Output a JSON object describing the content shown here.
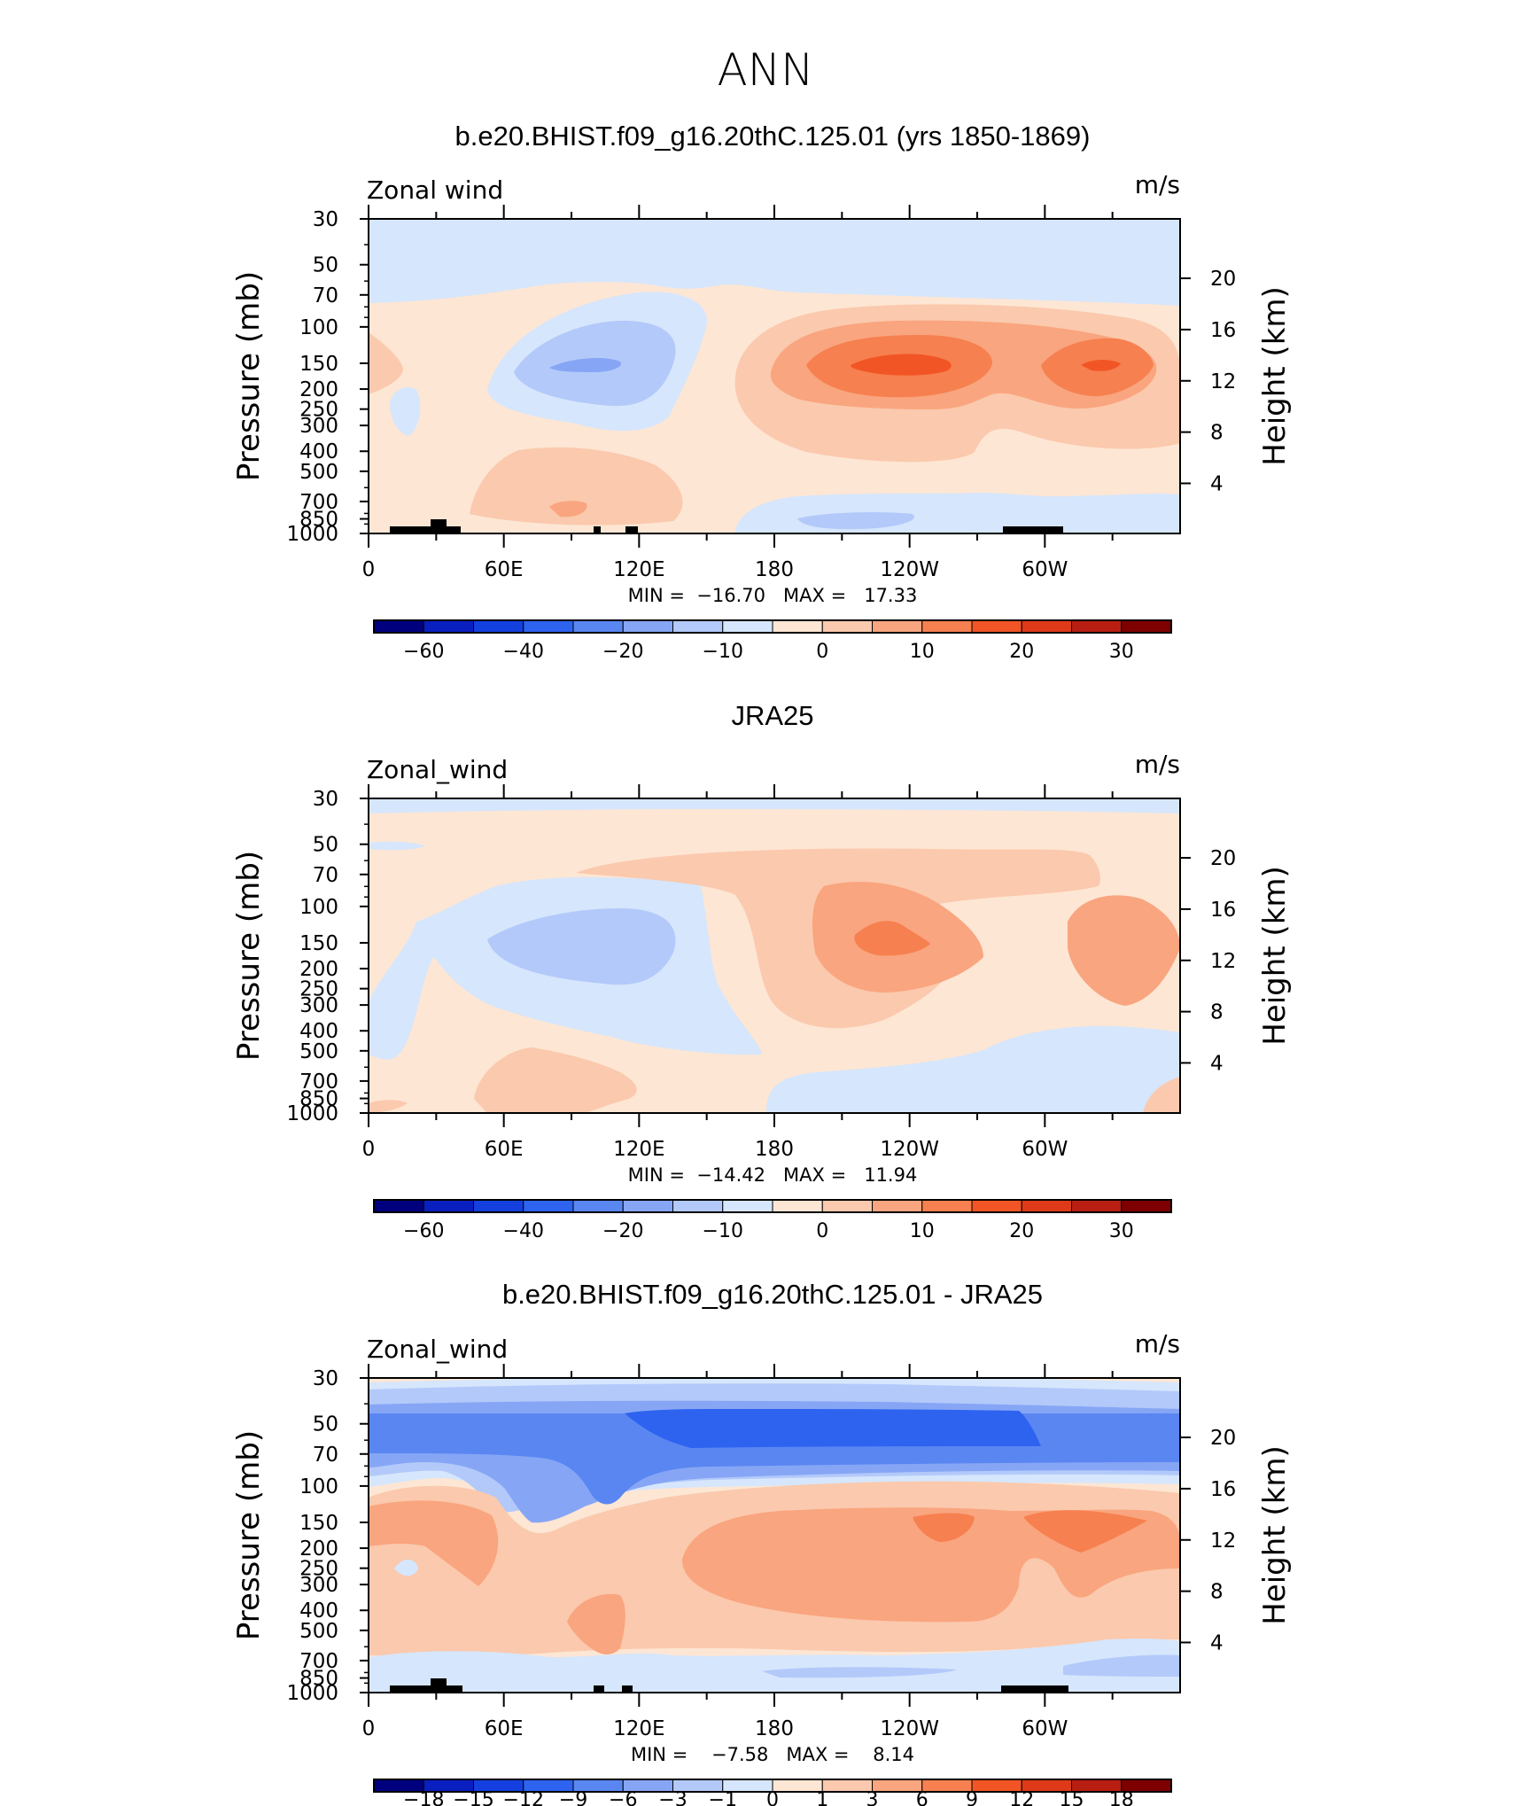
{
  "figure": {
    "title": "ANN",
    "left_axis_label": "Pressure (mb)",
    "right_axis_label": "Height (km)",
    "pressure_ticks": [
      "30",
      "50",
      "70",
      "100",
      "150",
      "200",
      "250",
      "300",
      "400",
      "500",
      "700",
      "850",
      "1000"
    ],
    "height_ticks": [
      "20",
      "16",
      "12",
      "8",
      "4"
    ],
    "lon_ticks": [
      "0",
      "60E",
      "120E",
      "180",
      "120W",
      "60W"
    ]
  },
  "palette": [
    "#00007f",
    "#0a1fbf",
    "#1440e0",
    "#2e63f0",
    "#5a86f2",
    "#86a6f5",
    "#b3c9fa",
    "#d6e6fc",
    "#fde6d4",
    "#fbc9ad",
    "#f9a57f",
    "#f6804f",
    "#f25525",
    "#de3a1a",
    "#b81e12",
    "#7f0000"
  ],
  "chart_data": [
    {
      "type": "heatmap",
      "title": "b.e20.BHIST.f09_g16.20thC.125.01 (yrs 1850-1869)",
      "variable": "Zonal wind",
      "units": "m/s",
      "stats": "MIN =  −16.70   MAX =   17.33",
      "min": -16.7,
      "max": 17.33,
      "ylabel": "Pressure (mb)",
      "y2label": "Height (km)",
      "xlabel": "",
      "colorbar_labels": [
        "−60",
        "−40",
        "−20",
        "−10",
        "0",
        "10",
        "20",
        "30"
      ],
      "colorbar_levels": [
        -70,
        -60,
        -50,
        -40,
        -30,
        -20,
        -15,
        -10,
        -5,
        0,
        5,
        10,
        15,
        20,
        25,
        30
      ],
      "features": [
        {
          "lon": 100,
          "p": 150,
          "value": -10
        },
        {
          "lon": 100,
          "p": 200,
          "value": -5
        },
        {
          "lon": 150,
          "p": 40,
          "value": -3
        },
        {
          "lon": 225,
          "p": 150,
          "value": 17
        },
        {
          "lon": 225,
          "p": 200,
          "value": 12
        },
        {
          "lon": 280,
          "p": 150,
          "value": 15
        },
        {
          "lon": 20,
          "p": 150,
          "value": 3
        },
        {
          "lon": 90,
          "p": 700,
          "value": 6
        },
        {
          "lon": 240,
          "p": 850,
          "value": -5
        },
        {
          "lon": 340,
          "p": 850,
          "value": 2
        }
      ]
    },
    {
      "type": "heatmap",
      "title": "JRA25",
      "variable": "Zonal_wind",
      "units": "m/s",
      "stats": "MIN =  −14.42   MAX =   11.94",
      "min": -14.42,
      "max": 11.94,
      "ylabel": "Pressure (mb)",
      "y2label": "Height (km)",
      "xlabel": "",
      "colorbar_labels": [
        "−60",
        "−40",
        "−20",
        "−10",
        "0",
        "10",
        "20",
        "30"
      ],
      "colorbar_levels": [
        -70,
        -60,
        -50,
        -40,
        -30,
        -20,
        -15,
        -10,
        -5,
        0,
        5,
        10,
        15,
        20,
        25,
        30
      ],
      "features": [
        {
          "lon": 90,
          "p": 150,
          "value": -8
        },
        {
          "lon": 60,
          "p": 300,
          "value": -3
        },
        {
          "lon": 225,
          "p": 150,
          "value": 11
        },
        {
          "lon": 225,
          "p": 200,
          "value": 8
        },
        {
          "lon": 300,
          "p": 150,
          "value": 8
        },
        {
          "lon": 180,
          "p": 60,
          "value": 4
        },
        {
          "lon": 80,
          "p": 700,
          "value": 5
        },
        {
          "lon": 250,
          "p": 800,
          "value": -3
        },
        {
          "lon": 5,
          "p": 35,
          "value": -2
        }
      ]
    },
    {
      "type": "heatmap",
      "title": "b.e20.BHIST.f09_g16.20thC.125.01 - JRA25",
      "variable": "Zonal_wind",
      "units": "m/s",
      "stats": "MIN =    −7.58   MAX =    8.14",
      "min": -7.58,
      "max": 8.14,
      "ylabel": "Pressure (mb)",
      "y2label": "Height (km)",
      "xlabel": "",
      "colorbar_labels": [
        "−18",
        "−15",
        "−12",
        "−9",
        "−6",
        "−3",
        "−1",
        "0",
        "1",
        "3",
        "6",
        "9",
        "12",
        "15",
        "18"
      ],
      "colorbar_levels": [
        -21,
        -18,
        -15,
        -12,
        -9,
        -6,
        -3,
        -1,
        0,
        1,
        3,
        6,
        9,
        12,
        15,
        18
      ],
      "features": [
        {
          "lon": 160,
          "p": 60,
          "value": -7
        },
        {
          "lon": 180,
          "p": 80,
          "value": -5
        },
        {
          "lon": 30,
          "p": 60,
          "value": -4
        },
        {
          "lon": 110,
          "p": 160,
          "value": -3
        },
        {
          "lon": 20,
          "p": 140,
          "value": 5
        },
        {
          "lon": 220,
          "p": 170,
          "value": 5
        },
        {
          "lon": 240,
          "p": 150,
          "value": 7
        },
        {
          "lon": 275,
          "p": 150,
          "value": 7
        },
        {
          "lon": 300,
          "p": 200,
          "value": 5
        },
        {
          "lon": 90,
          "p": 400,
          "value": 4
        },
        {
          "lon": 220,
          "p": 400,
          "value": 4
        },
        {
          "lon": 160,
          "p": 850,
          "value": -3
        },
        {
          "lon": 310,
          "p": 800,
          "value": -2
        }
      ]
    }
  ]
}
